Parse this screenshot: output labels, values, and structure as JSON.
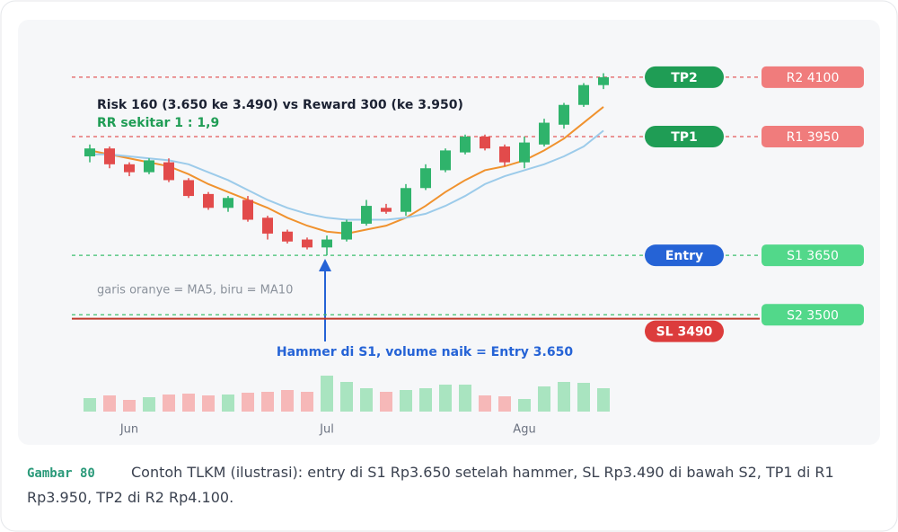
{
  "chart_data": {
    "type": "candlestick",
    "categories": [
      null,
      null,
      "Jun",
      null,
      null,
      null,
      null,
      null,
      null,
      null,
      null,
      null,
      "Jul",
      null,
      null,
      null,
      null,
      null,
      null,
      null,
      null,
      null,
      "Agu",
      null,
      null,
      null,
      null
    ],
    "open": [
      3900,
      3920,
      3880,
      3860,
      3885,
      3840,
      3805,
      3770,
      3790,
      3745,
      3710,
      3690,
      3670,
      3690,
      3730,
      3770,
      3760,
      3820,
      3865,
      3910,
      3950,
      3925,
      3885,
      3930,
      3980,
      4030,
      4080
    ],
    "high": [
      3930,
      3925,
      3885,
      3895,
      3895,
      3845,
      3810,
      3800,
      3800,
      3750,
      3715,
      3695,
      3700,
      3740,
      3790,
      3780,
      3830,
      3880,
      3920,
      3955,
      3955,
      3930,
      3950,
      3995,
      4035,
      4085,
      4110
    ],
    "low": [
      3885,
      3870,
      3850,
      3855,
      3835,
      3795,
      3765,
      3760,
      3735,
      3690,
      3680,
      3665,
      3650,
      3685,
      3725,
      3755,
      3750,
      3815,
      3860,
      3905,
      3915,
      3875,
      3870,
      3925,
      3970,
      4025,
      4070
    ],
    "close": [
      3920,
      3880,
      3860,
      3890,
      3840,
      3800,
      3770,
      3795,
      3740,
      3705,
      3685,
      3670,
      3690,
      3735,
      3775,
      3760,
      3820,
      3870,
      3915,
      3950,
      3920,
      3885,
      3935,
      3985,
      4030,
      4080,
      4100
    ],
    "up_color": "#2fb36b",
    "down_color": "#e24b4b",
    "ma": [
      {
        "color": "#f0922e",
        "values": [
          3915,
          3905,
          3895,
          3885,
          3875,
          3855,
          3830,
          3810,
          3790,
          3770,
          3745,
          3725,
          3710,
          3705,
          3715,
          3725,
          3745,
          3775,
          3810,
          3840,
          3865,
          3875,
          3890,
          3915,
          3945,
          3985,
          4025
        ]
      },
      {
        "color": "#9ccbea",
        "values": [
          3905,
          3905,
          3900,
          3895,
          3890,
          3880,
          3860,
          3840,
          3815,
          3790,
          3770,
          3755,
          3745,
          3740,
          3740,
          3740,
          3745,
          3755,
          3775,
          3800,
          3830,
          3850,
          3865,
          3880,
          3900,
          3925,
          3965
        ]
      }
    ],
    "volume": [
      15,
      18,
      13,
      16,
      19,
      20,
      18,
      19,
      21,
      22,
      24,
      22,
      40,
      33,
      26,
      22,
      24,
      26,
      30,
      30,
      18,
      17,
      14,
      28,
      33,
      32,
      26
    ],
    "volume_up_color": "#a9e4c0",
    "volume_down_color": "#f6b8b8",
    "ylim": [
      3260,
      4245
    ],
    "y2lim": [
      0,
      100
    ],
    "levels": [
      {
        "pill": "TP2",
        "pill_color": "#1f9d55",
        "tag": "R2 4100",
        "tag_color": "#f07c7c",
        "value": 4100,
        "line_color": "#e25a5a",
        "dashed": true
      },
      {
        "pill": "TP1",
        "pill_color": "#1f9d55",
        "tag": "R1 3950",
        "tag_color": "#f07c7c",
        "value": 3950,
        "line_color": "#e25a5a",
        "dashed": true
      },
      {
        "pill": "Entry",
        "pill_color": "#2563d6",
        "tag": "S1 3650",
        "tag_color": "#52d88a",
        "value": 3650,
        "line_color": "#3cbf6e",
        "dashed": true
      },
      {
        "tag": "S2 3500",
        "tag_color": "#52d88a",
        "value": 3500,
        "line_color": "#3cbf6e",
        "dashed": true
      },
      {
        "pill": "SL 3490",
        "pill_color": "#dc3c3c",
        "value": 3490,
        "line_color": "#c0392b",
        "dashed": false
      }
    ],
    "annotations": {
      "risk": "Risk 160 (3.650 ke 3.490) vs Reward 300 (ke 3.950)",
      "rr": "RR sekitar 1 : 1,9",
      "legend_note": "garis oranye = MA5, biru = MA10",
      "entry_note": "Hammer di S1, volume naik = Entry 3.650"
    }
  },
  "caption": {
    "label": "Gambar 80",
    "text": "Contoh TLKM (ilustrasi): entry di S1 Rp3.650 setelah hammer, SL Rp3.490 di bawah S2, TP1 di R1 Rp3.950, TP2 di R2 Rp4.100."
  }
}
